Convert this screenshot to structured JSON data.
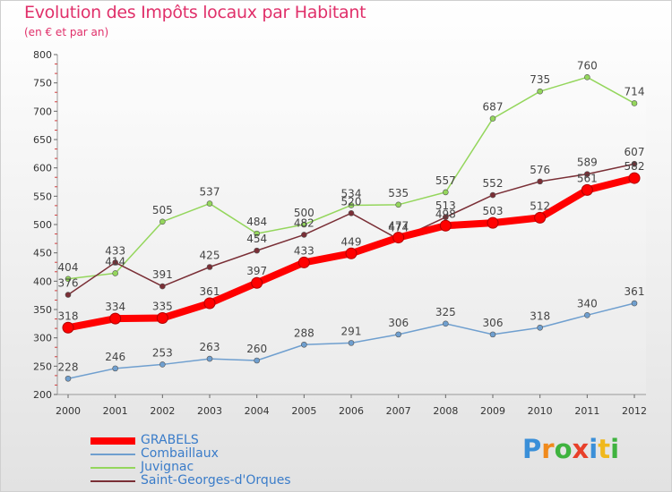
{
  "header": {
    "title": "Evolution des Impôts locaux par Habitant",
    "subtitle": "(en € et par an)"
  },
  "brand": {
    "text": "Proxiti",
    "colors": [
      "#3a8fd8",
      "#f08a1c",
      "#3fb33f",
      "#e8402a",
      "#3a8fd8",
      "#f0b81c",
      "#3fb33f"
    ]
  },
  "chart_data": {
    "type": "line",
    "title": "Evolution des Impôts locaux par Habitant",
    "subtitle": "(en € et par an)",
    "x": [
      2000,
      2001,
      2002,
      2003,
      2004,
      2005,
      2006,
      2007,
      2008,
      2009,
      2010,
      2011,
      2012
    ],
    "ylim": [
      200,
      800
    ],
    "yticks": [
      200,
      250,
      300,
      350,
      400,
      450,
      500,
      550,
      600,
      650,
      700,
      750,
      800
    ],
    "grid": false,
    "legend_position": "bottom-left",
    "series": [
      {
        "name": "GRABELS",
        "color": "#ff0000",
        "width": 8,
        "values": [
          318,
          334,
          335,
          361,
          397,
          433,
          449,
          477,
          498,
          503,
          512,
          561,
          582
        ]
      },
      {
        "name": "Combaillaux",
        "color": "#6f9fcf",
        "width": 1.5,
        "values": [
          228,
          246,
          253,
          263,
          260,
          288,
          291,
          306,
          325,
          306,
          318,
          340,
          361
        ]
      },
      {
        "name": "Juvignac",
        "color": "#94d65c",
        "width": 1.5,
        "values": [
          404,
          414,
          505,
          537,
          484,
          500,
          534,
          535,
          557,
          687,
          735,
          760,
          714
        ]
      },
      {
        "name": "Saint-Georges-d'Orques",
        "color": "#7a2f36",
        "width": 1.5,
        "values": [
          376,
          433,
          391,
          425,
          454,
          482,
          520,
          474,
          513,
          552,
          576,
          589,
          607
        ]
      }
    ]
  }
}
